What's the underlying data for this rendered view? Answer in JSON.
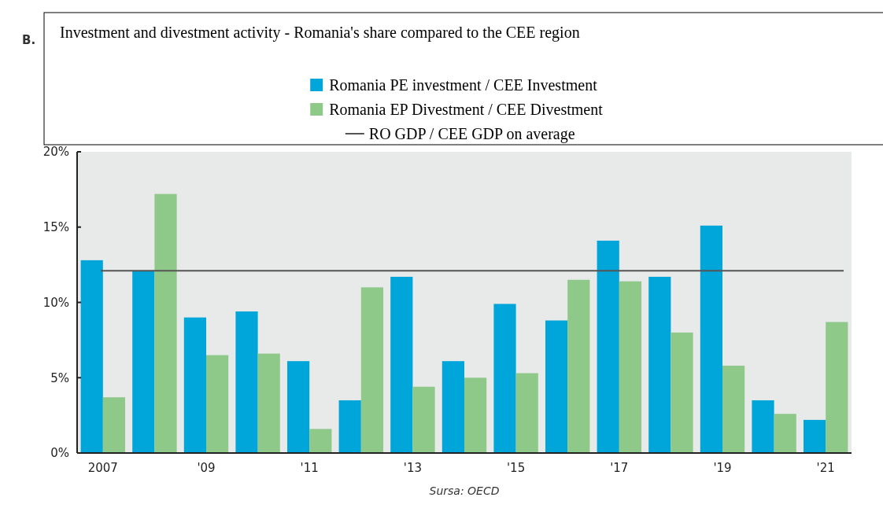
{
  "chart_data": {
    "type": "bar",
    "title": "Investment and divestment activity - Romania's share compared to the CEE region",
    "categories": [
      "2007",
      null,
      "'09",
      null,
      "'11",
      null,
      "'13",
      null,
      "'15",
      null,
      "'17",
      null,
      "'19",
      null,
      "'21"
    ],
    "series": [
      {
        "name": "Romania PE investment / CEE Investment",
        "color": "#00a6d9",
        "values": [
          12.8,
          12.1,
          9.0,
          9.4,
          6.1,
          3.5,
          11.7,
          6.1,
          9.9,
          8.8,
          14.1,
          11.7,
          15.1,
          3.5,
          2.2
        ]
      },
      {
        "name": "Romania EP Divestment / CEE Divestment",
        "color": "#8fc98a",
        "values": [
          3.7,
          17.2,
          6.5,
          6.6,
          1.6,
          11.0,
          4.4,
          5.0,
          5.3,
          11.5,
          11.4,
          8.0,
          5.8,
          2.6,
          8.7
        ]
      }
    ],
    "ylim": [
      0,
      20
    ],
    "yticks": [
      {
        "value": 0,
        "label": "0%"
      },
      {
        "value": 5,
        "label": "5%"
      },
      {
        "value": 10,
        "label": "10%"
      },
      {
        "value": 15,
        "label": "15%"
      },
      {
        "value": 20,
        "label": "20%"
      }
    ],
    "ref_lines": [
      {
        "axis": "y",
        "value": 12.1,
        "label": "RO GDP / CEE GDP on average",
        "color": "#555555"
      }
    ],
    "legend": "top",
    "annotations": [
      "B.",
      "Sursa: OECD"
    ]
  }
}
